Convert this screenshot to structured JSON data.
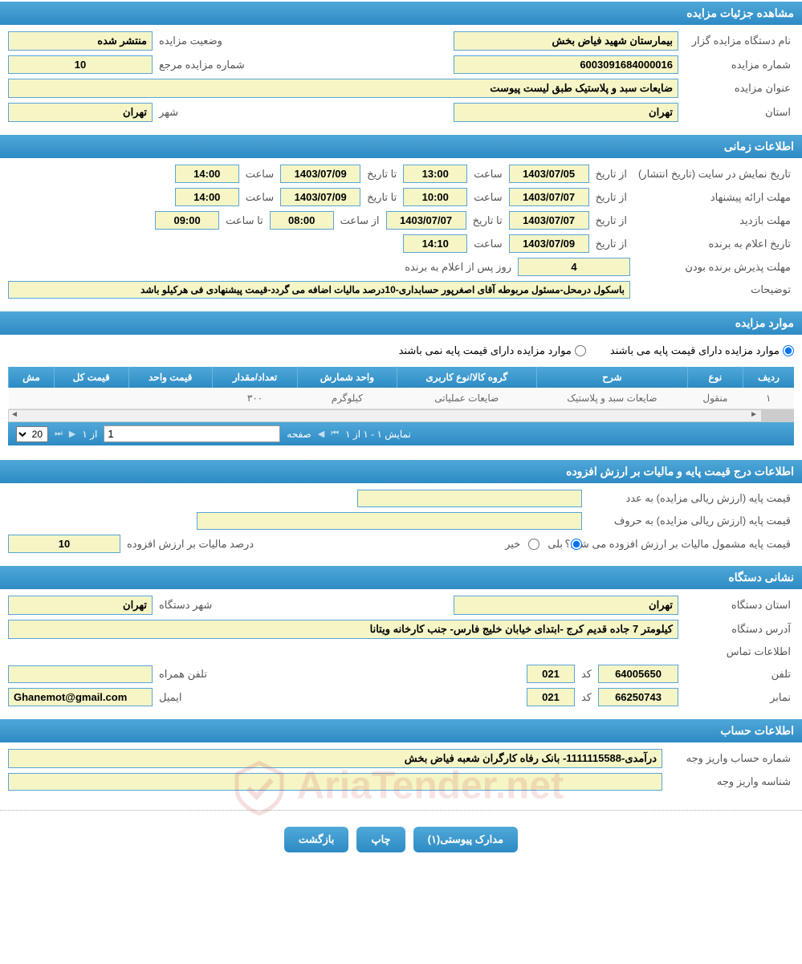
{
  "colors": {
    "header_bg_top": "#4fa8d8",
    "header_bg_bottom": "#2d8bc4",
    "field_bg": "#f5f5c6",
    "field_border": "#5aa5d6",
    "text": "#555555"
  },
  "sections": {
    "details": {
      "title": "مشاهده جزئیات مزایده",
      "organizer_label": "نام دستگاه مزایده گزار",
      "organizer": "بیمارستان شهید فیاض بخش",
      "status_label": "وضعیت مزایده",
      "status": "منتشر شده",
      "auction_no_label": "شماره مزایده",
      "auction_no": "6003091684000016",
      "ref_no_label": "شماره مزایده مرجع",
      "ref_no": "10",
      "title_label": "عنوان مزایده",
      "title_val": "ضایعات  سبد و پلاستیک  طبق لیست پیوست",
      "province_label": "استان",
      "province": "تهران",
      "city_label": "شهر",
      "city": "تهران"
    },
    "timing": {
      "title": "اطلاعات زمانی",
      "publish_label": "تاریخ نمایش در سایت (تاریخ انتشار)",
      "from_date_label": "از تاریخ",
      "to_date_label": "تا تاریخ",
      "time_label": "ساعت",
      "from_time_label": "از ساعت",
      "to_time_label": "تا ساعت",
      "publish_from_date": "1403/07/05",
      "publish_from_time": "13:00",
      "publish_to_date": "1403/07/09",
      "publish_to_time": "14:00",
      "proposal_label": "مهلت ارائه پیشنهاد",
      "proposal_from_date": "1403/07/07",
      "proposal_from_time": "10:00",
      "proposal_to_date": "1403/07/09",
      "proposal_to_time": "14:00",
      "visit_label": "مهلت بازدید",
      "visit_from_date": "1403/07/07",
      "visit_to_date": "1403/07/07",
      "visit_from_time": "08:00",
      "visit_to_time": "09:00",
      "announce_label": "تاریخ اعلام به برنده",
      "announce_date": "1403/07/09",
      "announce_time": "14:10",
      "accept_label": "مهلت پذیرش برنده بودن",
      "accept_days": "4",
      "accept_unit": "روز پس از اعلام به برنده",
      "notes_label": "توضیحات",
      "notes": "باسکول درمحل-مسئول مربوطه آقای اصغرپور حسابداری-10درصد مالیات اضافه می گردد-قیمت پیشنهادی فی هرکیلو باشد"
    },
    "items": {
      "title": "موارد مزایده",
      "radio_has_base": "موارد مزایده دارای قیمت پایه می باشند",
      "radio_no_base": "موارد مزایده دارای قیمت پایه نمی باشند",
      "columns": [
        "ردیف",
        "نوع",
        "شرح",
        "گروه کالا/نوع کاربری",
        "واحد شمارش",
        "تعداد/مقدار",
        "قیمت واحد",
        "قیمت کل",
        "مش"
      ],
      "rows": [
        [
          "۱",
          "منقول",
          "ضایعات سبد و پلاستیک",
          "ضایعات عملیاتی",
          "کیلوگرم",
          "۳۰۰",
          "",
          "",
          ""
        ]
      ],
      "pager": {
        "status": "نمایش ۱ - ۱ از ۱",
        "page_label": "صفحه",
        "page_input": "1",
        "of_label": "از ۱",
        "page_size": "20"
      }
    },
    "price": {
      "title": "اطلاعات درج قیمت پایه و مالیات بر ارزش افزوده",
      "base_num_label": "قیمت پایه (ارزش ریالی مزایده) به عدد",
      "base_num": "",
      "base_text_label": "قیمت پایه (ارزش ریالی مزایده) به حروف",
      "base_text": "",
      "vat_q_label": "قیمت پایه مشمول مالیات بر ارزش افزوده می شود؟",
      "yes": "بلی",
      "no": "خیر",
      "vat_pct_label": "درصد مالیات بر ارزش افزوده",
      "vat_pct": "10"
    },
    "address": {
      "title": "نشانی دستگاه",
      "province_label": "استان دستگاه",
      "province": "تهران",
      "city_label": "شهر دستگاه",
      "city": "تهران",
      "addr_label": "آدرس دستگاه",
      "addr": "کیلومتر 7 جاده قدیم کرج -ابتدای خیابان خلیج فارس- جنب کارخانه ویتانا",
      "contact_label": "اطلاعات تماس",
      "phone_label": "تلفن",
      "phone": "64005650",
      "code_label": "کد",
      "phone_code": "021",
      "mobile_label": "تلفن همراه",
      "mobile": "",
      "fax_label": "نمابر",
      "fax": "66250743",
      "fax_code": "021",
      "email_label": "ایمیل",
      "email": "Ghanemot@gmail.com"
    },
    "account": {
      "title": "اطلاعات حساب",
      "acct_no_label": "شماره حساب واریز وجه",
      "acct_no": "درآمدی-1111115588- بانک رفاه کارگران شعبه فیاض بخش",
      "acct_id_label": "شناسه واریز وجه",
      "acct_id": ""
    }
  },
  "buttons": {
    "attachments": "مدارک پیوستی(۱)",
    "print": "چاپ",
    "back": "بازگشت"
  },
  "watermark_text": "AriaTender.net"
}
